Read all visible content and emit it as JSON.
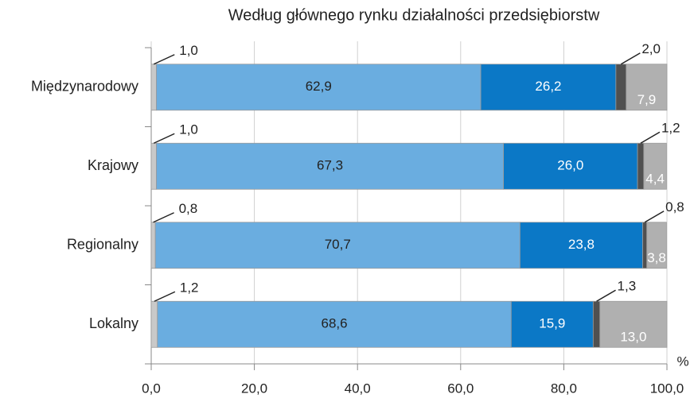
{
  "chart_data": {
    "type": "stacked-bar-horizontal",
    "subtitle": "Według głównego rynku działalności przedsiębiorstw",
    "x_unit": "%",
    "categories": [
      "Międzynarodowy",
      "Krajowy",
      "Regionalny",
      "Lokalny"
    ],
    "series": [
      {
        "color": "#c9c9c9",
        "label_color": "#222222",
        "label_position": "outside-left",
        "values": [
          1.0,
          1.0,
          0.8,
          1.2
        ],
        "value_labels": [
          "1,0",
          "1,0",
          "0,8",
          "1,2"
        ]
      },
      {
        "color": "#6aade0",
        "label_color": "#222222",
        "label_position": "inside",
        "values": [
          62.9,
          67.3,
          70.7,
          68.6
        ],
        "value_labels": [
          "62,9",
          "67,3",
          "70,7",
          "68,6"
        ]
      },
      {
        "color": "#0b78c6",
        "label_color": "#ffffff",
        "label_position": "inside",
        "values": [
          26.2,
          26.0,
          23.8,
          15.9
        ],
        "value_labels": [
          "26,2",
          "26,0",
          "23,8",
          "15,9"
        ]
      },
      {
        "color": "#505050",
        "label_color": "#222222",
        "label_position": "outside-above",
        "values": [
          2.0,
          1.2,
          0.8,
          1.3
        ],
        "value_labels": [
          "2,0",
          "1,2",
          "0,8",
          "1,3"
        ]
      },
      {
        "color": "#b0b0b0",
        "label_color": "#ffffff",
        "label_position": "inside-low",
        "values": [
          7.9,
          4.4,
          3.8,
          13.0
        ],
        "value_labels": [
          "7,9",
          "4,4",
          "3,8",
          "13,0"
        ]
      }
    ],
    "xlim": [
      0,
      100
    ],
    "xticks": [
      {
        "value": 0,
        "label": "0,0"
      },
      {
        "value": 20,
        "label": "20,0"
      },
      {
        "value": 40,
        "label": "40,0"
      },
      {
        "value": 60,
        "label": "60,0"
      },
      {
        "value": 80,
        "label": "80,0"
      },
      {
        "value": 100,
        "label": "100,0"
      }
    ],
    "grid": true
  }
}
